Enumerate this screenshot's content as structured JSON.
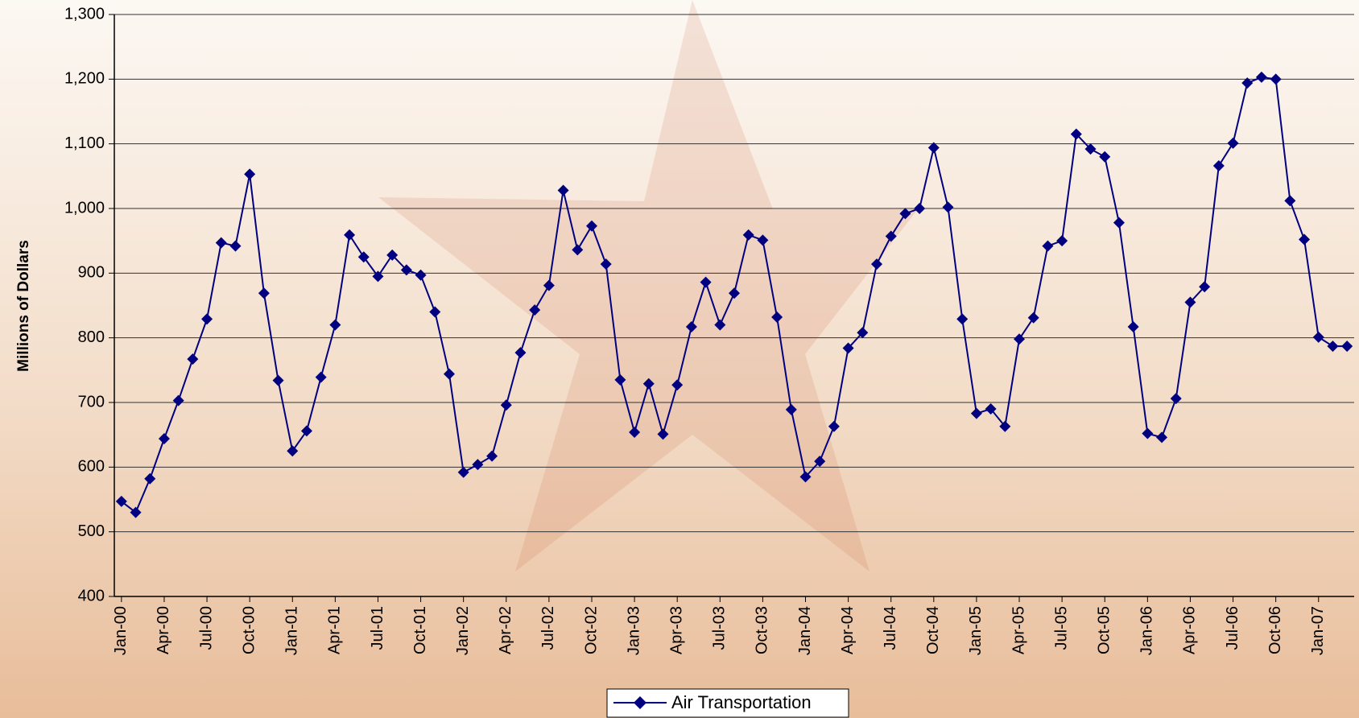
{
  "chart_data": {
    "type": "line",
    "y_label": "Millions of Dollars",
    "categories": [
      "Jan-00",
      null,
      null,
      "Apr-00",
      null,
      null,
      "Jul-00",
      null,
      null,
      "Oct-00",
      null,
      null,
      "Jan-01",
      null,
      null,
      "Apr-01",
      null,
      null,
      "Jul-01",
      null,
      null,
      "Oct-01",
      null,
      null,
      "Jan-02",
      null,
      null,
      "Apr-02",
      null,
      null,
      "Jul-02",
      null,
      null,
      "Oct-02",
      null,
      null,
      "Jan-03",
      null,
      null,
      "Apr-03",
      null,
      null,
      "Jul-03",
      null,
      null,
      "Oct-03",
      null,
      null,
      "Jan-04",
      null,
      null,
      "Apr-04",
      null,
      null,
      "Jul-04",
      null,
      null,
      "Oct-04",
      null,
      null,
      "Jan-05",
      null,
      null,
      "Apr-05",
      null,
      null,
      "Jul-05",
      null,
      null,
      "Oct-05",
      null,
      null,
      "Jan-06",
      null,
      null,
      "Apr-06",
      null,
      null,
      "Jul-06",
      null,
      null,
      "Oct-06",
      null,
      null,
      "Jan-07",
      null,
      null
    ],
    "series": [
      {
        "name": "Air Transportation",
        "color": "#000080",
        "values": [
          547,
          530,
          582,
          644,
          703,
          767,
          829,
          947,
          942,
          1053,
          869,
          734,
          625,
          656,
          739,
          820,
          959,
          925,
          895,
          928,
          905,
          897,
          840,
          744,
          592,
          604,
          617,
          696,
          777,
          843,
          881,
          1028,
          936,
          973,
          914,
          735,
          654,
          729,
          651,
          727,
          817,
          886,
          820,
          869,
          959,
          951,
          832,
          689,
          585,
          609,
          663,
          784,
          808,
          914,
          957,
          992,
          1000,
          1094,
          1002,
          829,
          683,
          690,
          663,
          798,
          831,
          942,
          950,
          1115,
          1092,
          1080,
          978,
          817,
          652,
          646,
          706,
          855,
          879,
          1066,
          1101,
          1194,
          1203,
          1200,
          1012,
          952,
          801,
          787,
          787
        ]
      }
    ],
    "ylim": [
      400,
      1300
    ],
    "yticks": [
      400,
      500,
      600,
      700,
      800,
      900,
      {
        "value": 1000,
        "label": "1,000"
      },
      {
        "value": 1100,
        "label": "1,100"
      },
      {
        "value": 1200,
        "label": "1,200"
      },
      {
        "value": 1300,
        "label": "1,300"
      }
    ],
    "grid": true,
    "legend": "bottom"
  }
}
